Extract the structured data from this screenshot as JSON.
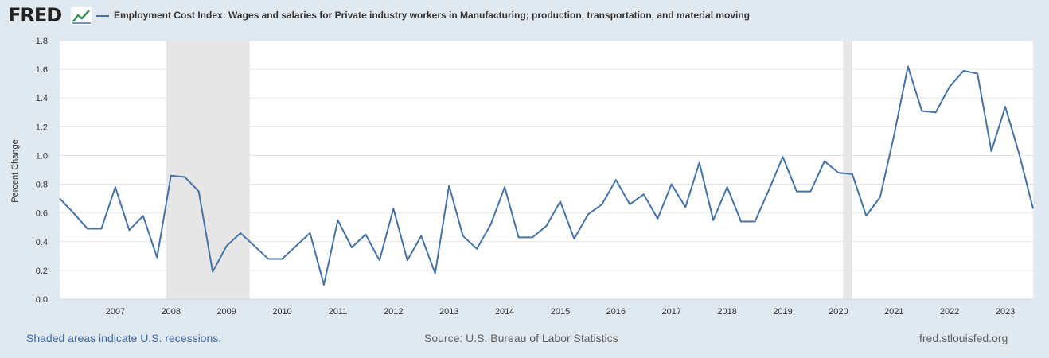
{
  "header": {
    "logo_text": "FRED",
    "legend_label": "Employment Cost Index: Wages and salaries for Private industry workers in Manufacturing; production, transportation, and material moving"
  },
  "footer": {
    "recession_note": "Shaded areas indicate U.S. recessions.",
    "source": "Source: U.S. Bureau of Labor Statistics",
    "site": "fred.stlouisfed.org"
  },
  "colors": {
    "line": "#4572a7",
    "plot_background": "#ffffff",
    "page_background": "#e1e9f0",
    "recession_shade": "#e6e6e6",
    "gridline": "#e6e6e6"
  },
  "icons": [
    "fred-logo-chart-icon"
  ],
  "chart_data": {
    "type": "line",
    "title": "",
    "xlabel": "",
    "ylabel": "Percent Change",
    "ylim": [
      0,
      1.8
    ],
    "xlim": [
      "2006-01",
      "2023-07"
    ],
    "yticks": [
      "0.0",
      "0.2",
      "0.4",
      "0.6",
      "0.8",
      "1.0",
      "1.2",
      "1.4",
      "1.6",
      "1.8"
    ],
    "xticks": [
      "2007",
      "2008",
      "2009",
      "2010",
      "2011",
      "2012",
      "2013",
      "2014",
      "2015",
      "2016",
      "2017",
      "2018",
      "2019",
      "2020",
      "2021",
      "2022",
      "2023"
    ],
    "grid": true,
    "recessions": [
      {
        "start": "2007-12",
        "end": "2009-06"
      },
      {
        "start": "2020-02",
        "end": "2020-04"
      }
    ],
    "series": [
      {
        "name": "Employment Cost Index: Wages and salaries for Private industry workers in Manufacturing; production, transportation, and material moving",
        "x": [
          "2006-01",
          "2006-04",
          "2006-07",
          "2006-10",
          "2007-01",
          "2007-04",
          "2007-07",
          "2007-10",
          "2008-01",
          "2008-04",
          "2008-07",
          "2008-10",
          "2009-01",
          "2009-04",
          "2009-07",
          "2009-10",
          "2010-01",
          "2010-04",
          "2010-07",
          "2010-10",
          "2011-01",
          "2011-04",
          "2011-07",
          "2011-10",
          "2012-01",
          "2012-04",
          "2012-07",
          "2012-10",
          "2013-01",
          "2013-04",
          "2013-07",
          "2013-10",
          "2014-01",
          "2014-04",
          "2014-07",
          "2014-10",
          "2015-01",
          "2015-04",
          "2015-07",
          "2015-10",
          "2016-01",
          "2016-04",
          "2016-07",
          "2016-10",
          "2017-01",
          "2017-04",
          "2017-07",
          "2017-10",
          "2018-01",
          "2018-04",
          "2018-07",
          "2018-10",
          "2019-01",
          "2019-04",
          "2019-07",
          "2019-10",
          "2020-01",
          "2020-04",
          "2020-07",
          "2020-10",
          "2021-01",
          "2021-04",
          "2021-07",
          "2021-10",
          "2022-01",
          "2022-04",
          "2022-07",
          "2022-10",
          "2023-01",
          "2023-04",
          "2023-07"
        ],
        "values": [
          0.7,
          0.6,
          0.49,
          0.49,
          0.78,
          0.48,
          0.58,
          0.29,
          0.86,
          0.85,
          0.75,
          0.19,
          0.37,
          0.46,
          0.37,
          0.28,
          0.28,
          0.37,
          0.46,
          0.1,
          0.55,
          0.36,
          0.45,
          0.27,
          0.63,
          0.27,
          0.44,
          0.18,
          0.79,
          0.44,
          0.35,
          0.52,
          0.78,
          0.43,
          0.43,
          0.51,
          0.68,
          0.42,
          0.59,
          0.66,
          0.83,
          0.66,
          0.73,
          0.56,
          0.8,
          0.64,
          0.95,
          0.55,
          0.78,
          0.54,
          0.54,
          0.76,
          0.99,
          0.75,
          0.75,
          0.96,
          0.88,
          0.87,
          0.58,
          0.71,
          1.14,
          1.62,
          1.31,
          1.3,
          1.48,
          1.59,
          1.57,
          1.03,
          1.34,
          1.01,
          0.63
        ]
      }
    ]
  }
}
